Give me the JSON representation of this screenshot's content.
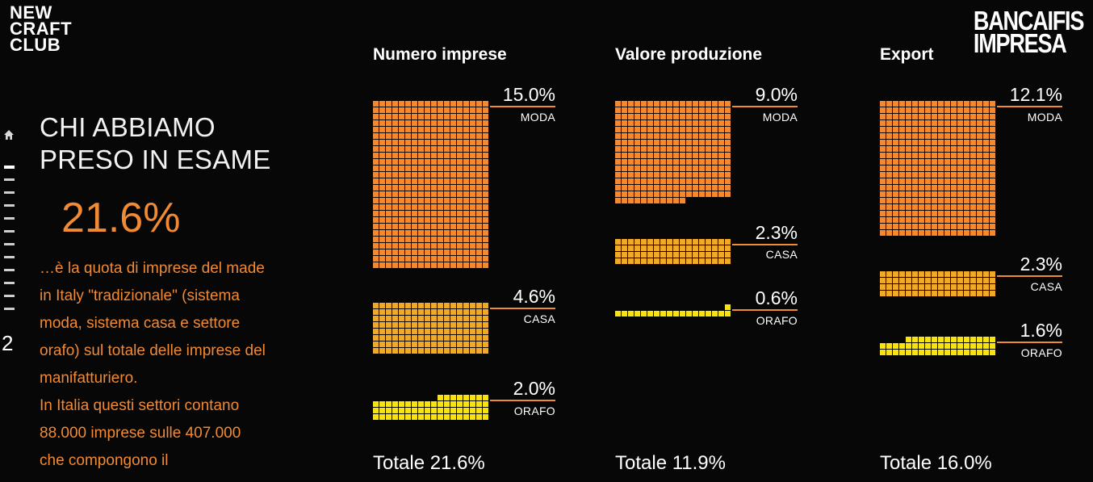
{
  "brand": {
    "left_logo_lines": [
      "NEW",
      "CRAFT",
      "CLUB"
    ],
    "right_logo_lines": [
      "BANCAIFIS",
      "IMPRESA"
    ]
  },
  "nav": {
    "home_icon": "home-icon",
    "page_number": "2"
  },
  "intro": {
    "headline_lines": [
      "CHI ABBIAMO",
      "PRESO IN ESAME"
    ],
    "big_value": "21.6%",
    "body_lines": [
      "…è la quota di imprese del made",
      "in Italy \"tradizionale\" (sistema",
      "moda, sistema casa e settore",
      "orafo) sul totale delle imprese del",
      "manifatturiero.",
      "In Italia questi settori contano",
      "88.000 imprese sulle 407.000",
      "che compongono il"
    ]
  },
  "colors": {
    "moda": "#f7892c",
    "casa": "#f0aa2a",
    "orafo": "#f7e312",
    "accent": "#f08a34",
    "background": "#070707"
  },
  "chart_data": [
    {
      "type": "waffle",
      "title": "Numero imprese",
      "total_label": "Totale 21.6%",
      "series": [
        {
          "name": "MODA",
          "label": "15.0%",
          "value": 15.0
        },
        {
          "name": "CASA",
          "label": "4.6%",
          "value": 4.6
        },
        {
          "name": "ORAFO",
          "label": "2.0%",
          "value": 2.0
        }
      ]
    },
    {
      "type": "waffle",
      "title": "Valore produzione",
      "total_label": "Totale 11.9%",
      "series": [
        {
          "name": "MODA",
          "label": "9.0%",
          "value": 9.0
        },
        {
          "name": "CASA",
          "label": "2.3%",
          "value": 2.3
        },
        {
          "name": "ORAFO",
          "label": "0.6%",
          "value": 0.6
        }
      ]
    },
    {
      "type": "waffle",
      "title": "Export",
      "total_label": "Totale 16.0%",
      "series": [
        {
          "name": "MODA",
          "label": "12.1%",
          "value": 12.1
        },
        {
          "name": "CASA",
          "label": "2.3%",
          "value": 2.3
        },
        {
          "name": "ORAFO",
          "label": "1.6%",
          "value": 1.6
        }
      ]
    }
  ]
}
